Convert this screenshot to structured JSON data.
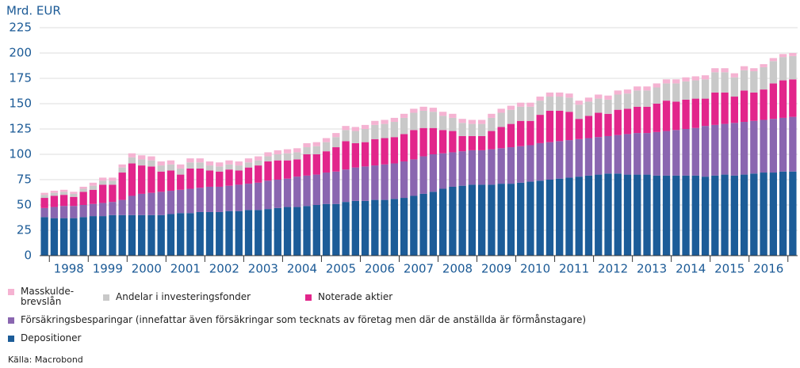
{
  "chart_data": {
    "type": "stacked_bar",
    "y_axis_label": "Mrd. EUR",
    "source": "Källa:  Macrobond",
    "ylim": [
      0,
      225
    ],
    "yticks": [
      0,
      25,
      50,
      75,
      100,
      125,
      150,
      175,
      200,
      225
    ],
    "grid": true,
    "categories": [
      null,
      null,
      "1998",
      null,
      null,
      null,
      "1999",
      null,
      null,
      null,
      "2000",
      null,
      null,
      null,
      "2001",
      null,
      null,
      null,
      "2002",
      null,
      null,
      null,
      "2003",
      null,
      null,
      null,
      "2004",
      null,
      null,
      null,
      "2005",
      null,
      null,
      null,
      "2006",
      null,
      null,
      null,
      "2007",
      null,
      null,
      null,
      "2008",
      null,
      null,
      null,
      "2009",
      null,
      null,
      null,
      "2010",
      null,
      null,
      null,
      "2011",
      null,
      null,
      null,
      "2012",
      null,
      null,
      null,
      "2013",
      null,
      null,
      null,
      "2014",
      null,
      null,
      null,
      "2015",
      null,
      null,
      null,
      "2016",
      null,
      null,
      null
    ],
    "series": [
      {
        "name": "Depositioner",
        "color": "#1c5c98",
        "values": [
          38,
          37,
          37,
          37,
          38,
          39,
          39,
          40,
          40,
          40,
          40,
          40,
          40,
          41,
          42,
          42,
          43,
          43,
          43,
          44,
          44,
          45,
          45,
          46,
          47,
          48,
          48,
          49,
          50,
          51,
          51,
          53,
          54,
          54,
          55,
          55,
          56,
          57,
          59,
          61,
          63,
          66,
          68,
          69,
          70,
          70,
          70,
          71,
          71,
          72,
          73,
          74,
          75,
          76,
          77,
          78,
          79,
          80,
          81,
          81,
          80,
          80,
          80,
          79,
          79,
          79,
          79,
          79,
          78,
          79,
          80,
          79,
          80,
          81,
          82,
          82,
          83,
          83
        ]
      },
      {
        "name": "Försäkringsbesparingar (innefattar även försäkringar som tecknats av företag men där de anställda är förmånstagare)",
        "color": "#8a66b0",
        "values": [
          9,
          11,
          12,
          12,
          12,
          12,
          13,
          13,
          15,
          19,
          21,
          22,
          23,
          23,
          23,
          24,
          24,
          25,
          25,
          25,
          26,
          26,
          27,
          28,
          28,
          28,
          30,
          30,
          30,
          31,
          32,
          32,
          33,
          34,
          34,
          35,
          35,
          36,
          36,
          37,
          37,
          35,
          34,
          34,
          34,
          34,
          35,
          35,
          36,
          36,
          36,
          37,
          37,
          37,
          37,
          37,
          37,
          37,
          37,
          38,
          40,
          41,
          41,
          43,
          44,
          45,
          46,
          47,
          50,
          50,
          50,
          52,
          52,
          52,
          52,
          53,
          53,
          54
        ]
      },
      {
        "name": "Noterade aktier",
        "color": "#e2258b",
        "values": [
          10,
          11,
          11,
          9,
          13,
          14,
          18,
          17,
          27,
          32,
          28,
          26,
          20,
          20,
          15,
          20,
          19,
          16,
          15,
          16,
          14,
          16,
          17,
          19,
          19,
          18,
          17,
          21,
          20,
          21,
          24,
          28,
          24,
          24,
          26,
          26,
          26,
          27,
          29,
          28,
          26,
          23,
          21,
          15,
          14,
          14,
          18,
          21,
          23,
          25,
          24,
          28,
          31,
          30,
          28,
          20,
          22,
          24,
          22,
          25,
          25,
          26,
          26,
          28,
          30,
          28,
          29,
          29,
          27,
          32,
          31,
          26,
          31,
          28,
          30,
          35,
          37,
          37
        ]
      },
      {
        "name": "Andelar i investeringsfonder",
        "color": "#c9c9c9",
        "values": [
          3,
          3,
          3,
          3,
          3,
          4,
          4,
          4,
          5,
          6,
          6,
          6,
          6,
          6,
          6,
          6,
          6,
          5,
          5,
          5,
          5,
          5,
          5,
          5,
          6,
          7,
          7,
          7,
          8,
          9,
          10,
          11,
          12,
          13,
          14,
          14,
          15,
          16,
          17,
          17,
          16,
          14,
          13,
          13,
          12,
          12,
          13,
          14,
          14,
          14,
          14,
          14,
          14,
          14,
          14,
          14,
          14,
          14,
          14,
          15,
          15,
          16,
          16,
          16,
          17,
          18,
          18,
          18,
          19,
          20,
          20,
          19,
          20,
          21,
          22,
          22,
          23,
          23
        ]
      },
      {
        "name": "Masskulde-brevslån",
        "color": "#f5b3d2",
        "values": [
          2,
          2,
          2,
          2,
          2,
          3,
          3,
          3,
          3,
          4,
          4,
          4,
          4,
          4,
          4,
          4,
          4,
          4,
          4,
          4,
          4,
          4,
          4,
          4,
          4,
          4,
          4,
          4,
          4,
          4,
          4,
          4,
          4,
          4,
          4,
          4,
          4,
          4,
          4,
          4,
          4,
          4,
          4,
          4,
          4,
          4,
          4,
          4,
          4,
          4,
          4,
          4,
          4,
          4,
          4,
          4,
          4,
          4,
          4,
          4,
          4,
          4,
          4,
          4,
          4,
          4,
          4,
          4,
          4,
          4,
          4,
          4,
          4,
          3,
          3,
          3,
          3,
          3
        ]
      }
    ]
  }
}
